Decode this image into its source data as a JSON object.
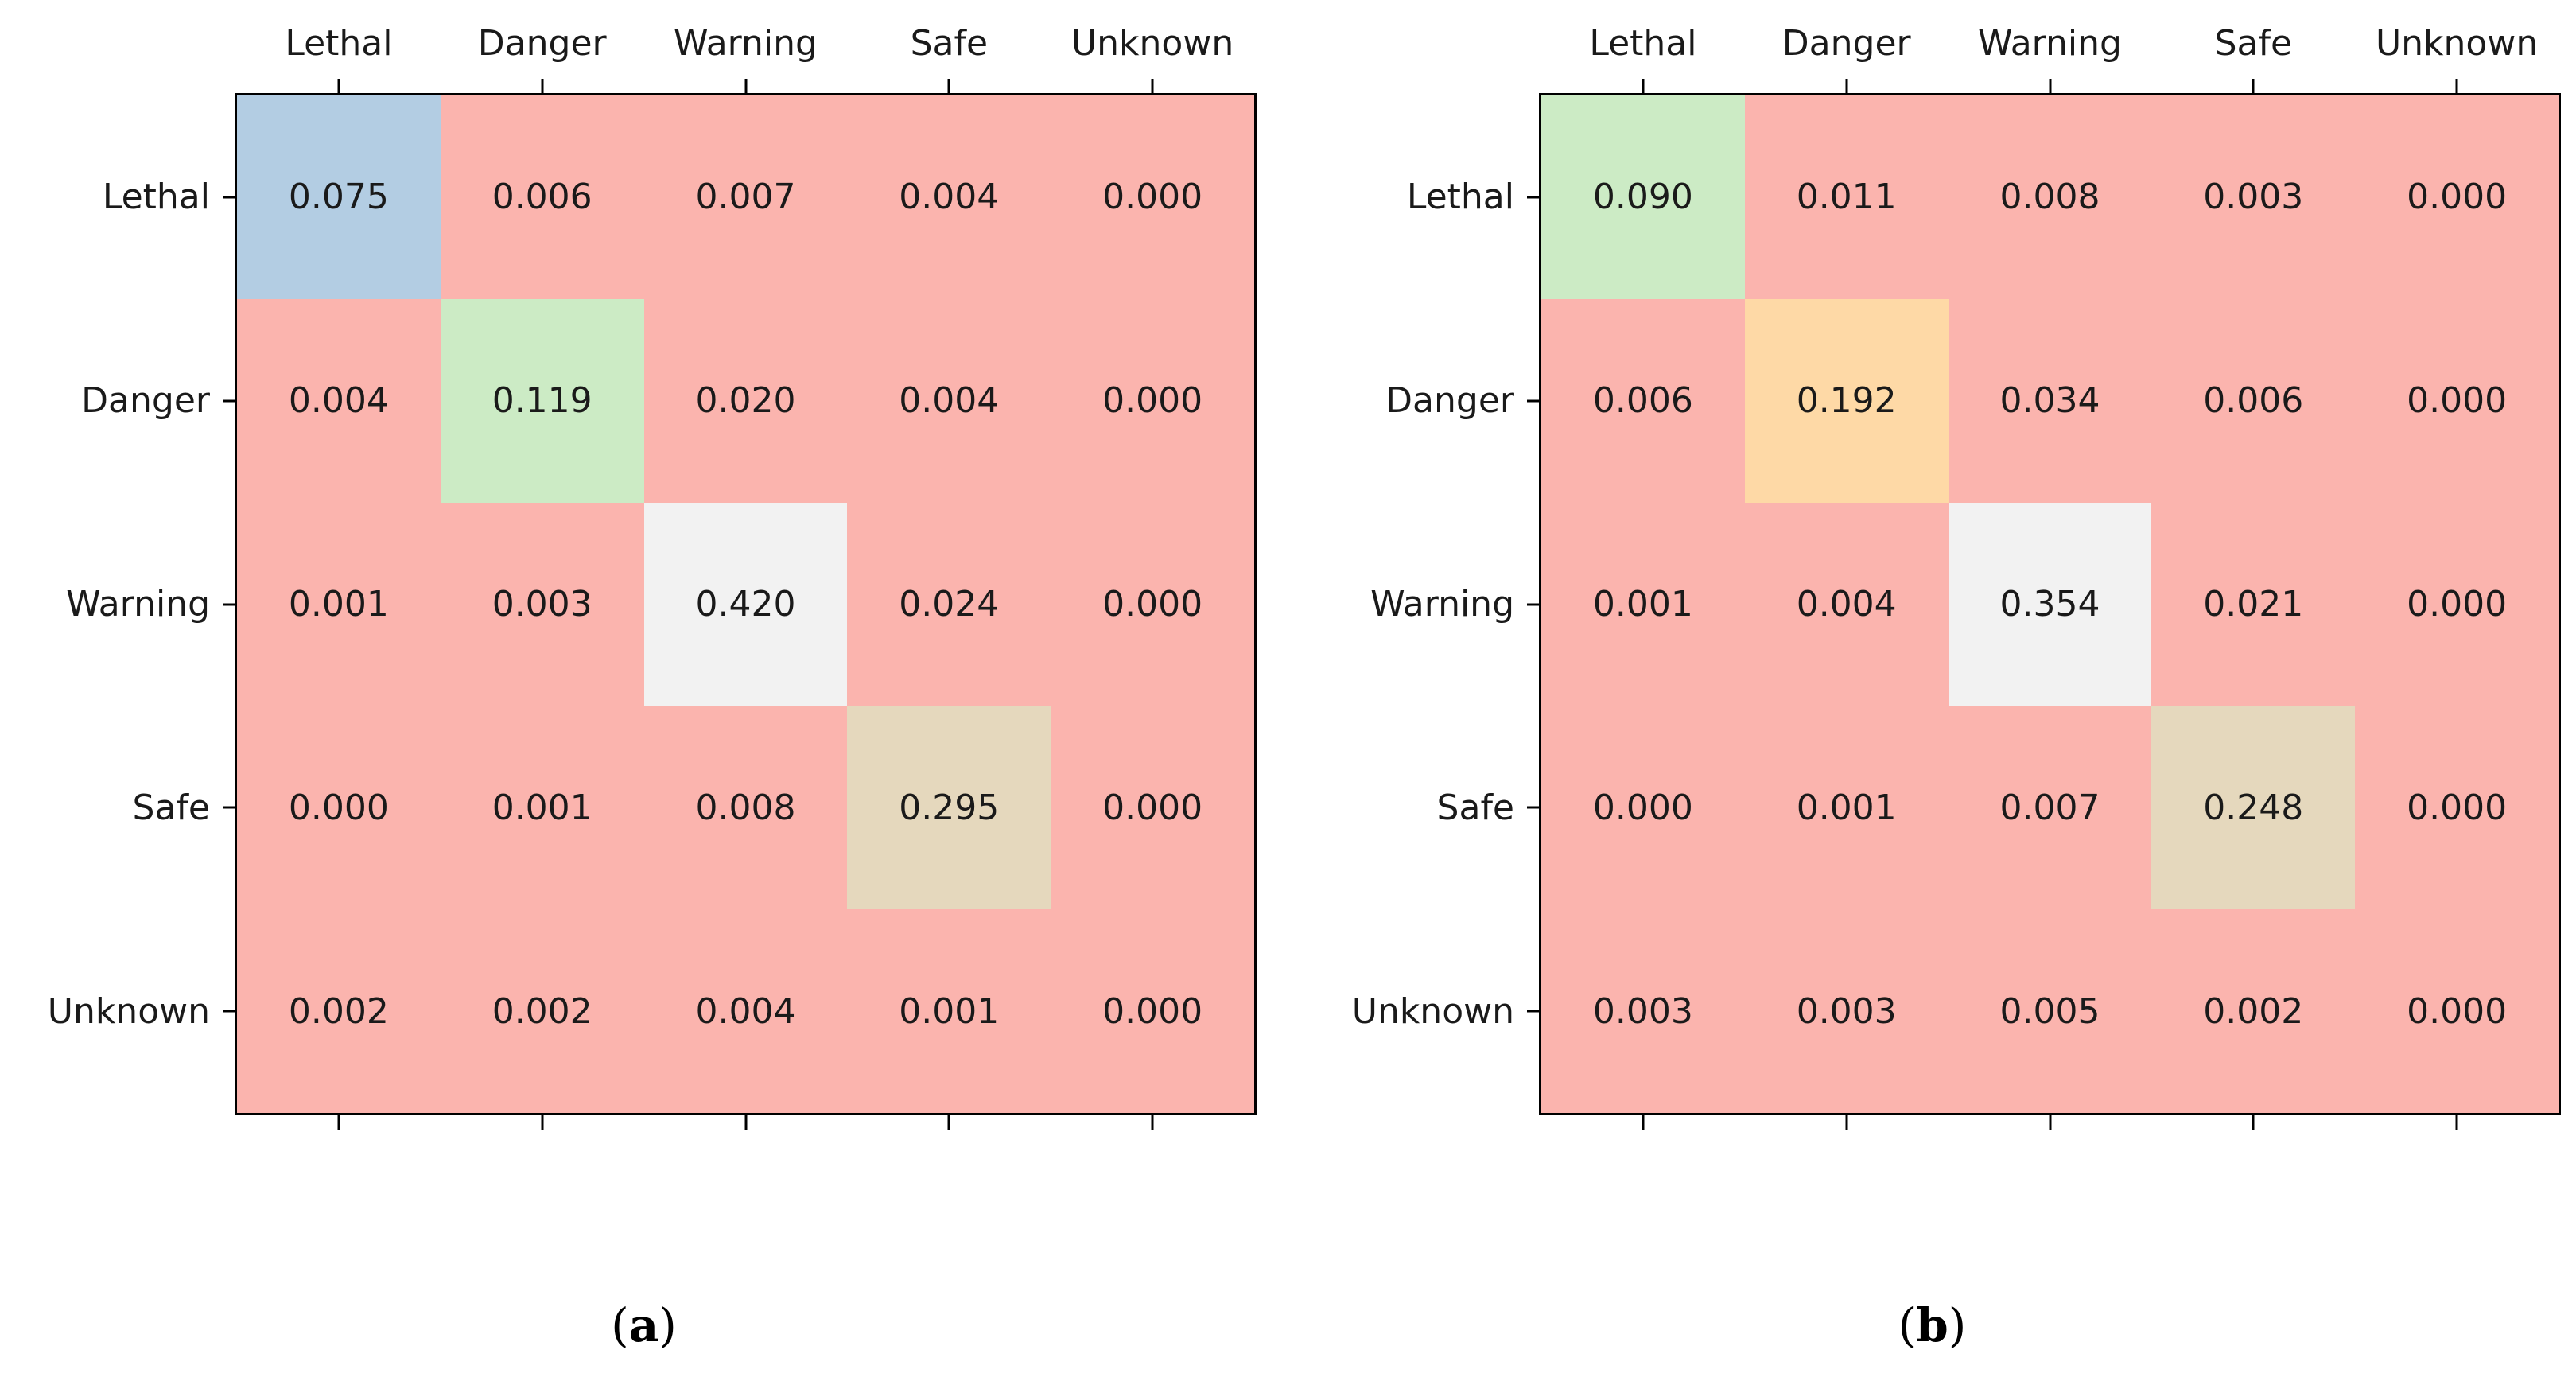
{
  "chart_data": [
    {
      "type": "heatmap",
      "caption": "(a)",
      "caption_open": "(",
      "caption_letter": "a",
      "caption_close": ")",
      "x_categories": [
        "Lethal",
        "Danger",
        "Warning",
        "Safe",
        "Unknown"
      ],
      "y_categories": [
        "Lethal",
        "Danger",
        "Warning",
        "Safe",
        "Unknown"
      ],
      "values": [
        [
          0.075,
          0.006,
          0.007,
          0.004,
          0.0
        ],
        [
          0.004,
          0.119,
          0.02,
          0.004,
          0.0
        ],
        [
          0.001,
          0.003,
          0.42,
          0.024,
          0.0
        ],
        [
          0.0,
          0.001,
          0.008,
          0.295,
          0.0
        ],
        [
          0.002,
          0.002,
          0.004,
          0.001,
          0.0
        ]
      ],
      "vmin": 0.0,
      "vmax": 0.42,
      "value_format_decimals": 3,
      "x_axis_side": "top",
      "y_axis_side": "left",
      "grid": "off",
      "legend": "none"
    },
    {
      "type": "heatmap",
      "caption": "(b)",
      "caption_open": "(",
      "caption_letter": "b",
      "caption_close": ")",
      "x_categories": [
        "Lethal",
        "Danger",
        "Warning",
        "Safe",
        "Unknown"
      ],
      "y_categories": [
        "Lethal",
        "Danger",
        "Warning",
        "Safe",
        "Unknown"
      ],
      "values": [
        [
          0.09,
          0.011,
          0.008,
          0.003,
          0.0
        ],
        [
          0.006,
          0.192,
          0.034,
          0.006,
          0.0
        ],
        [
          0.001,
          0.004,
          0.354,
          0.021,
          0.0
        ],
        [
          0.0,
          0.001,
          0.007,
          0.248,
          0.0
        ],
        [
          0.003,
          0.003,
          0.005,
          0.002,
          0.0
        ]
      ],
      "vmin": 0.0,
      "vmax": 0.354,
      "value_format_decimals": 3,
      "x_axis_side": "top",
      "y_axis_side": "left",
      "grid": "off",
      "legend": "none"
    }
  ],
  "style": {
    "colormap": [
      "#fbb4ae",
      "#b3cde3",
      "#ccebc5",
      "#decbe4",
      "#fed9a6",
      "#ffffcc",
      "#e5d8bd",
      "#fddaec",
      "#f2f2f2"
    ],
    "background_cell_color": "#fbb4ae",
    "value_text_color": "#1a1a1a",
    "axis_line_color": "#000000",
    "caption_text_color": "#000000"
  }
}
